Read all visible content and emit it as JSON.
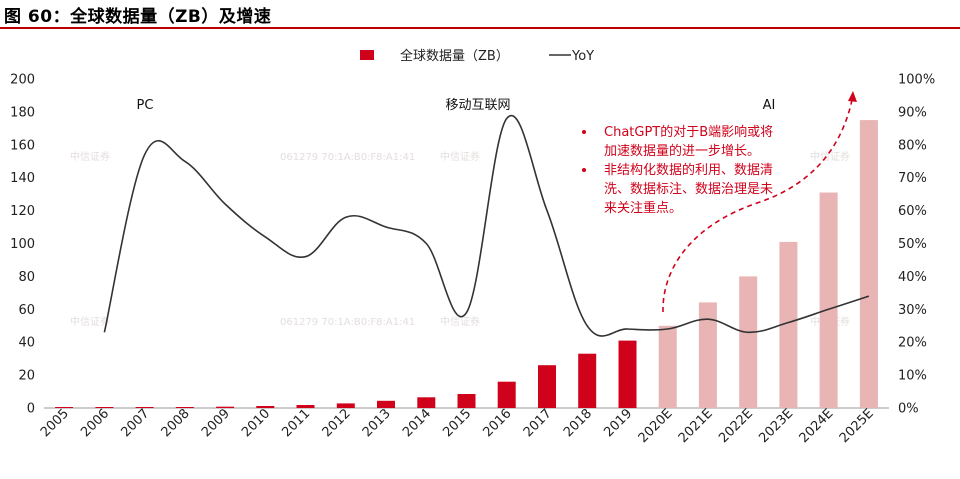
{
  "figure": {
    "title": "图 60：全球数据量（ZB）及增速"
  },
  "watermark": {
    "left": "中信证券",
    "code": "061279 70:1A:B0:F8:A1:41"
  },
  "colors": {
    "actual_bar": "#d0021b",
    "forecast_bar": "#e8b4b4",
    "line": "#333333",
    "arrow": "#d0021b",
    "note": "#d0021b",
    "rule": "#c00000"
  },
  "chart_data": {
    "type": "bar",
    "title": "",
    "categories": [
      "2005",
      "2006",
      "2007",
      "2008",
      "2009",
      "2010",
      "2011",
      "2012",
      "2013",
      "2014",
      "2015",
      "2016",
      "2017",
      "2018",
      "2019",
      "2020E",
      "2021E",
      "2022E",
      "2023E",
      "2024E",
      "2025E"
    ],
    "series": [
      {
        "name": "全球数据量（ZB）",
        "axis": "left",
        "type": "bar",
        "values": [
          0.1,
          0.2,
          0.3,
          0.5,
          0.8,
          1.2,
          1.8,
          2.8,
          4.4,
          6.5,
          8.5,
          16,
          26,
          33,
          41,
          50,
          64.2,
          80,
          101,
          131,
          175
        ],
        "forecast_from_index": 15
      },
      {
        "name": "YoY",
        "axis": "right",
        "type": "line",
        "values": [
          null,
          23,
          77,
          75,
          62,
          52,
          46,
          58,
          55,
          50,
          29,
          88,
          60,
          25,
          24,
          24,
          27,
          23,
          26,
          30,
          34
        ]
      }
    ],
    "y_left": {
      "min": 0,
      "max": 200,
      "ticks": [
        "0",
        "20",
        "40",
        "60",
        "80",
        "100",
        "120",
        "140",
        "160",
        "180",
        "200"
      ]
    },
    "y_right": {
      "min": 0,
      "max": 100,
      "ticks": [
        "0%",
        "10%",
        "20%",
        "30%",
        "40%",
        "50%",
        "60%",
        "70%",
        "80%",
        "90%",
        "100%"
      ]
    },
    "legend": {
      "bar_label": "全球数据量（ZB）",
      "line_label": "YoY",
      "placement": "top-center"
    },
    "eras": [
      "PC",
      "移动互联网",
      "AI"
    ],
    "notes": [
      "ChatGPT的对于B端影响或将",
      "加速数据量的进一步增长。",
      "非结构化数据的利用、数据清",
      "洗、数据标注、数据治理是未",
      "来关注重点。"
    ]
  }
}
